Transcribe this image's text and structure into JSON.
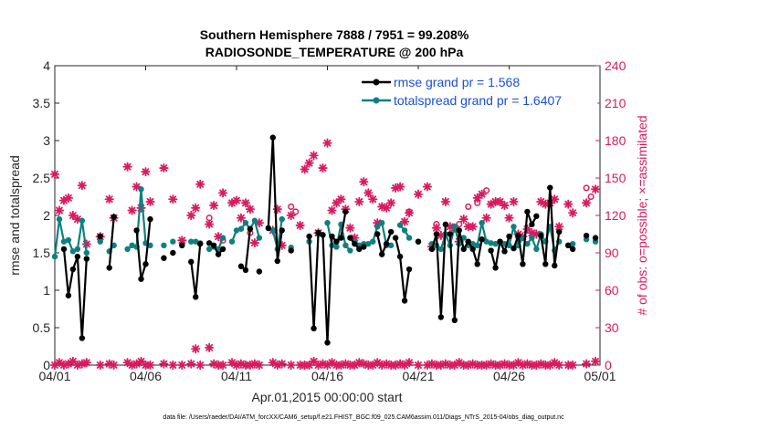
{
  "chart_data": {
    "type": "line",
    "title": "Southern Hemisphere 7888 / 7951 = 99.208%",
    "subtitle": "RADIOSONDE_TEMPERATURE @ 200 hPa",
    "xlabel": "Apr.01,2015 00:00:00 start",
    "ylabel_left": "rmse and totalspread",
    "ylabel_right": "# of obs: o=possible; ×=assimilated",
    "footnote": "data file: /Users/raeder/DAI/ATM_forcXX/CAM6_setup/f.e21.FHIST_BGC.f09_025.CAM6assim.011/Diags_NTrS_2015-04/obs_diag_output.nc",
    "xlim": [
      1,
      31
    ],
    "x_ticks": [
      1,
      6,
      11,
      16,
      21,
      26,
      31
    ],
    "x_tick_labels": [
      "04/01",
      "04/06",
      "04/11",
      "04/16",
      "04/21",
      "04/26",
      "05/01"
    ],
    "ylim_left": [
      0,
      4
    ],
    "y_ticks_left": [
      "0",
      "0.5",
      "1",
      "1.5",
      "2",
      "2.5",
      "3",
      "3.5",
      "4"
    ],
    "ylim_right": [
      0,
      240
    ],
    "y_ticks_right": [
      "0",
      "30",
      "60",
      "90",
      "120",
      "150",
      "180",
      "210",
      "240"
    ],
    "colors": {
      "rmse": "#000000",
      "spread": "#0f8080",
      "obs": "#d81b60"
    },
    "legend": [
      {
        "label": "rmse grand pr = 1.568",
        "color": "#000000"
      },
      {
        "label": "totalspread grand pr = 1.6407",
        "color": "#0f8080"
      }
    ],
    "series": [
      {
        "name": "rmse",
        "segments": [
          {
            "x": [
              1.5,
              1.75,
              2.0,
              2.25,
              2.5,
              2.75
            ],
            "y": [
              1.55,
              0.93,
              1.28,
              1.45,
              0.36,
              1.42
            ]
          },
          {
            "x": [
              3.5
            ],
            "y": [
              1.72
            ]
          },
          {
            "x": [
              4.0,
              4.25
            ],
            "y": [
              1.3,
              1.98
            ]
          },
          {
            "x": [
              5.5,
              5.75,
              6.0,
              6.25
            ],
            "y": [
              1.8,
              1.15,
              1.35,
              1.95
            ]
          },
          {
            "x": [
              7.0
            ],
            "y": [
              1.43
            ]
          },
          {
            "x": [
              7.5
            ],
            "y": [
              1.5
            ]
          },
          {
            "x": [
              8.0
            ],
            "y": [
              1.6
            ]
          },
          {
            "x": [
              8.5,
              8.75,
              9.0
            ],
            "y": [
              1.38,
              0.91,
              1.62
            ]
          },
          {
            "x": [
              9.5,
              9.75,
              10.0,
              10.25
            ],
            "y": [
              1.63,
              1.6,
              1.48,
              1.55
            ]
          },
          {
            "x": [
              11.25,
              11.5,
              11.75
            ],
            "y": [
              1.32,
              1.27,
              1.82
            ]
          },
          {
            "x": [
              12.25
            ],
            "y": [
              1.25
            ]
          },
          {
            "x": [
              12.75,
              13.0,
              13.25,
              13.5
            ],
            "y": [
              1.83,
              3.04,
              1.39,
              1.8
            ]
          },
          {
            "x": [
              14.0
            ],
            "y": [
              1.53
            ]
          },
          {
            "x": [
              15.0,
              15.25,
              15.5
            ],
            "y": [
              1.72,
              0.49,
              1.77
            ]
          },
          {
            "x": [
              15.75,
              16.0,
              16.25,
              16.5,
              16.75,
              17.0
            ],
            "y": [
              1.74,
              0.3,
              1.72,
              1.65,
              1.7,
              2.05
            ]
          },
          {
            "x": [
              17.25,
              17.5,
              17.75,
              18.0
            ],
            "y": [
              1.7,
              1.62,
              1.55,
              1.58
            ]
          },
          {
            "x": [
              18.75,
              19.0,
              19.25,
              19.5
            ],
            "y": [
              1.75,
              1.48,
              1.62,
              1.78
            ]
          },
          {
            "x": [
              19.75,
              20.0,
              20.25,
              20.5
            ],
            "y": [
              1.7,
              1.45,
              0.86,
              1.28
            ]
          },
          {
            "x": [
              21.0
            ],
            "y": [
              1.65
            ]
          },
          {
            "x": [
              21.75,
              22.0,
              22.25,
              22.5
            ],
            "y": [
              1.55,
              1.75,
              0.64,
              1.88
            ]
          },
          {
            "x": [
              22.75,
              23.0,
              23.25,
              23.5,
              23.75,
              24.0,
              24.25,
              24.5
            ],
            "y": [
              1.75,
              0.6,
              1.8,
              1.55,
              1.65,
              1.55,
              1.35,
              1.68
            ]
          },
          {
            "x": [
              25.0,
              25.25,
              25.5,
              25.75,
              26.0
            ],
            "y": [
              1.53,
              1.3,
              1.65,
              1.52,
              1.72
            ]
          },
          {
            "x": [
              26.25,
              26.5,
              26.75,
              27.0,
              27.25,
              27.5
            ],
            "y": [
              1.56,
              1.73,
              1.35,
              2.05,
              1.88,
              1.99
            ]
          },
          {
            "x": [
              27.75,
              28.0,
              28.25,
              28.5,
              28.75
            ],
            "y": [
              1.73,
              1.35,
              2.37,
              1.33,
              1.78
            ]
          },
          {
            "x": [
              29.25,
              29.5
            ],
            "y": [
              1.6,
              1.55
            ]
          },
          {
            "x": [
              30.25
            ],
            "y": [
              1.73
            ]
          },
          {
            "x": [
              30.75
            ],
            "y": [
              1.7
            ]
          }
        ]
      },
      {
        "name": "totalspread",
        "segments": [
          {
            "x": [
              1.0,
              1.25,
              1.5,
              1.75,
              2.0,
              2.25,
              2.5,
              2.75
            ],
            "y": [
              1.45,
              1.95,
              1.65,
              1.67,
              1.52,
              1.55,
              1.93,
              1.5
            ]
          },
          {
            "x": [
              3.5
            ],
            "y": [
              1.65
            ]
          },
          {
            "x": [
              4.0,
              4.25
            ],
            "y": [
              1.52,
              1.6
            ]
          },
          {
            "x": [
              5.0,
              5.25,
              5.5,
              5.75,
              6.0,
              6.25
            ],
            "y": [
              1.55,
              1.6,
              1.58,
              2.35,
              1.63,
              1.6
            ]
          },
          {
            "x": [
              7.0
            ],
            "y": [
              1.6
            ]
          },
          {
            "x": [
              7.5
            ],
            "y": [
              1.65
            ]
          },
          {
            "x": [
              8.0
            ],
            "y": [
              1.6
            ]
          },
          {
            "x": [
              8.5,
              8.75,
              9.0
            ],
            "y": [
              1.65,
              1.65,
              1.63
            ]
          },
          {
            "x": [
              9.5,
              9.75,
              10.0,
              10.25
            ],
            "y": [
              1.55,
              1.58,
              1.55,
              1.7
            ]
          },
          {
            "x": [
              10.75,
              11.0,
              11.25,
              11.5,
              11.75,
              12.0,
              12.25
            ],
            "y": [
              1.65,
              1.8,
              1.82,
              1.9,
              1.82,
              1.93,
              1.7
            ]
          },
          {
            "x": [
              13.0,
              13.25,
              13.5
            ],
            "y": [
              1.8,
              1.55,
              1.95
            ]
          },
          {
            "x": [
              14.0
            ],
            "y": [
              1.57
            ]
          },
          {
            "x": [
              15.0
            ],
            "y": [
              1.65
            ]
          },
          {
            "x": [
              15.5
            ],
            "y": [
              1.75
            ]
          },
          {
            "x": [
              16.0,
              16.25,
              16.5,
              16.75,
              17.0,
              17.25
            ],
            "y": [
              1.9,
              1.6,
              1.58,
              1.88,
              1.6,
              1.53
            ]
          },
          {
            "x": [
              17.5,
              17.75,
              18.0,
              18.25,
              18.5,
              18.75,
              19.0,
              19.25,
              19.5
            ],
            "y": [
              1.65,
              1.6,
              1.62,
              1.62,
              1.65,
              1.85,
              1.9,
              1.6,
              1.6
            ]
          },
          {
            "x": [
              20.0,
              20.25,
              20.5
            ],
            "y": [
              1.87,
              1.8,
              1.7
            ]
          },
          {
            "x": [
              21.0
            ],
            "y": [
              1.65
            ]
          },
          {
            "x": [
              21.75,
              22.0,
              22.25,
              22.5,
              22.75,
              23.0,
              23.25,
              23.5
            ],
            "y": [
              1.62,
              1.6,
              1.55,
              1.75,
              1.6,
              1.85,
              1.62,
              1.7
            ]
          },
          {
            "x": [
              23.75,
              24.0,
              24.25,
              24.5,
              24.75
            ],
            "y": [
              1.6,
              1.62,
              1.6,
              1.9,
              1.65
            ]
          },
          {
            "x": [
              25.0,
              25.25,
              25.5,
              25.75,
              26.0,
              26.25,
              26.5,
              26.75
            ],
            "y": [
              1.63,
              1.62,
              1.65,
              1.62,
              1.6,
              1.85,
              1.6,
              1.7
            ]
          },
          {
            "x": [
              27.0,
              27.25,
              27.5,
              27.75,
              28.0,
              28.25,
              28.5,
              28.75
            ],
            "y": [
              1.62,
              1.7,
              1.55,
              1.75,
              1.65,
              1.85,
              1.53,
              1.65
            ]
          },
          {
            "x": [
              29.25,
              29.5
            ],
            "y": [
              1.6,
              1.62
            ]
          },
          {
            "x": [
              30.25
            ],
            "y": [
              1.68
            ]
          },
          {
            "x": [
              30.75
            ],
            "y": [
              1.65
            ]
          }
        ]
      }
    ],
    "obs_possible": {
      "x": [
        9.5,
        10.25,
        11.75,
        14.0,
        14.25,
        20.5,
        22.0,
        23.25,
        23.75,
        24.25,
        24.75,
        30.25,
        30.5
      ],
      "y": [
        118,
        100,
        106,
        127,
        123,
        123,
        113,
        113,
        127,
        130,
        140,
        142,
        135
      ]
    },
    "obs_assimilated": {
      "x": [
        1.0,
        1.25,
        1.5,
        1.75,
        2.0,
        2.25,
        2.5,
        2.75,
        3.5,
        4.0,
        4.25,
        5.0,
        5.25,
        5.5,
        5.75,
        6.0,
        6.25,
        7.0,
        7.5,
        8.0,
        8.5,
        8.75,
        9.0,
        9.5,
        9.75,
        10.0,
        10.25,
        10.75,
        11.0,
        11.25,
        11.5,
        11.75,
        12.0,
        12.25,
        13.0,
        13.25,
        13.5,
        14.0,
        14.5,
        14.75,
        15.0,
        15.25,
        15.5,
        15.75,
        16.0,
        16.25,
        16.5,
        16.75,
        17.0,
        17.25,
        17.5,
        17.75,
        18.0,
        18.25,
        18.5,
        18.75,
        19.0,
        19.25,
        19.5,
        19.75,
        20.0,
        20.25,
        20.5,
        21.0,
        21.5,
        21.75,
        22.0,
        22.25,
        22.5,
        22.75,
        23.0,
        23.25,
        23.5,
        23.75,
        24.0,
        24.25,
        24.5,
        24.75,
        25.0,
        25.25,
        25.5,
        25.75,
        26.0,
        26.25,
        26.5,
        26.75,
        27.0,
        27.25,
        27.5,
        27.75,
        28.0,
        28.25,
        28.5,
        28.75,
        29.25,
        29.5,
        30.25,
        30.75
      ],
      "y": [
        153,
        124,
        132,
        134,
        120,
        117,
        144,
        97,
        103,
        133,
        118,
        159,
        124,
        143,
        126,
        155,
        131,
        158,
        133,
        100,
        120,
        126,
        145,
        113,
        128,
        103,
        138,
        130,
        132,
        118,
        130,
        125,
        98,
        114,
        108,
        125,
        96,
        120,
        112,
        157,
        162,
        168,
        106,
        158,
        178,
        124,
        130,
        133,
        125,
        110,
        102,
        131,
        147,
        138,
        133,
        114,
        127,
        126,
        130,
        142,
        143,
        115,
        122,
        137,
        143,
        95,
        110,
        104,
        131,
        111,
        110,
        99,
        117,
        111,
        111,
        134,
        137,
        118,
        129,
        131,
        131,
        128,
        118,
        131,
        105,
        103,
        109,
        106,
        105,
        131,
        129,
        130,
        133,
        111,
        129,
        122,
        130,
        141
      ]
    },
    "obs_assimilated_bottom": {
      "x": [
        1.0,
        1.25,
        1.5,
        1.75,
        2.0,
        2.25,
        2.5,
        2.75,
        3.5,
        4.0,
        4.25,
        5.0,
        5.25,
        5.5,
        5.75,
        6.0,
        6.25,
        7.0,
        7.5,
        8.0,
        8.5,
        8.75,
        9.0,
        9.5,
        9.75,
        10.0,
        10.25,
        10.75,
        11.0,
        11.25,
        11.5,
        11.75,
        12.0,
        12.25,
        13.0,
        13.25,
        13.5,
        14.0,
        14.5,
        14.75,
        15.0,
        15.25,
        15.5,
        15.75,
        16.0,
        16.25,
        16.5,
        16.75,
        17.0,
        17.25,
        17.5,
        17.75,
        18.0,
        18.25,
        18.5,
        18.75,
        19.0,
        19.25,
        19.5,
        19.75,
        20.0,
        20.25,
        20.5,
        21.0,
        21.5,
        21.75,
        22.0,
        22.25,
        22.5,
        22.75,
        23.0,
        23.25,
        23.5,
        23.75,
        24.0,
        24.25,
        24.5,
        24.75,
        25.0,
        25.25,
        25.5,
        25.75,
        26.0,
        26.25,
        26.5,
        26.75,
        27.0,
        27.25,
        27.5,
        27.75,
        28.0,
        28.25,
        28.5,
        28.75,
        29.25,
        29.5,
        30.25,
        30.75
      ],
      "y": [
        0,
        2,
        0,
        1,
        3,
        0,
        1,
        2,
        0,
        1,
        0,
        2,
        0,
        1,
        3,
        0,
        0,
        1,
        0,
        0,
        1,
        13,
        0,
        14,
        1,
        0,
        0,
        2,
        0,
        1,
        0,
        0,
        1,
        0,
        2,
        0,
        1,
        0,
        0,
        0,
        0,
        3,
        0,
        1,
        0,
        2,
        0,
        0,
        1,
        0,
        0,
        2,
        1,
        0,
        0,
        2,
        0,
        1,
        0,
        0,
        1,
        0,
        2,
        0,
        0,
        1,
        0,
        0,
        1,
        0,
        0,
        2,
        0,
        0,
        1,
        0,
        0,
        0,
        1,
        0,
        0,
        1,
        0,
        0,
        2,
        0,
        1,
        0,
        0,
        1,
        0,
        0,
        2,
        0,
        0,
        0,
        1,
        3
      ]
    }
  }
}
